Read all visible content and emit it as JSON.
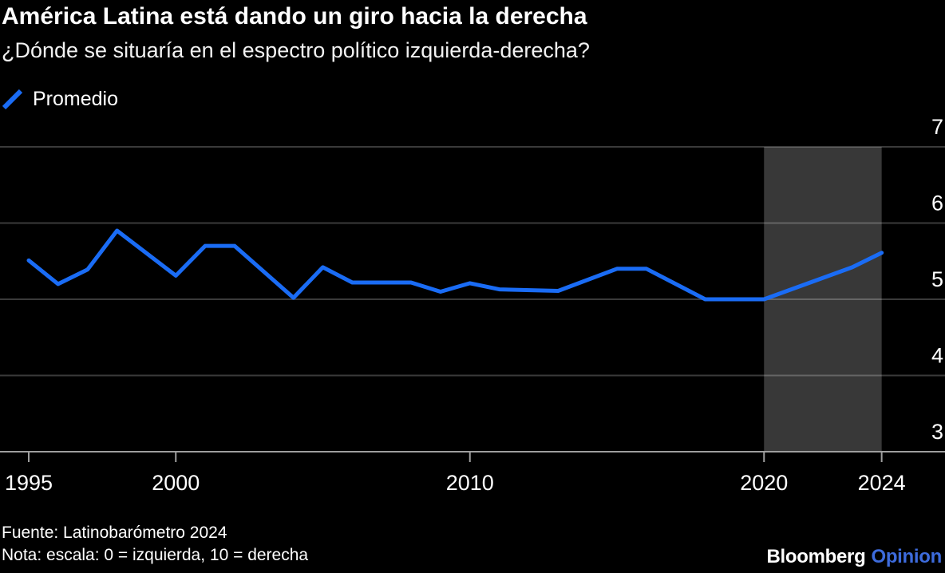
{
  "header": {
    "title": "América Latina está dando un giro hacia la derecha",
    "subtitle": "¿Dónde se situaría en el espectro político izquierda-derecha?"
  },
  "legend": {
    "label": "Promedio",
    "marker_icon": "blue-line-slash-icon",
    "marker_color": "#1a6cf5"
  },
  "footer": {
    "source": "Fuente: Latinobarómetro 2024",
    "note": "Nota: escala: 0 = izquierda, 10 = derecha",
    "logo_primary": "Bloomberg",
    "logo_secondary": "Opinion"
  },
  "colors": {
    "background": "#000000",
    "line": "#1a6cf5",
    "gridline": "#3a3a3a",
    "axis_baseline": "#9e9e9e",
    "axis_text": "#ffffff",
    "highlight_band": "rgba(255,255,255,0.22)",
    "logo_opinion_blue": "#3d6bdc"
  },
  "chart_data": {
    "type": "line",
    "title": "América Latina está dando un giro hacia la derecha",
    "subtitle": "¿Dónde se situaría en el espectro político izquierda-derecha?",
    "xlabel": "",
    "ylabel": "",
    "x_domain": [
      1995,
      2024
    ],
    "y_domain": [
      3,
      7
    ],
    "x_ticks": [
      1995,
      2000,
      2010,
      2020,
      2024
    ],
    "y_ticks": [
      7,
      6,
      5,
      4,
      3
    ],
    "grid": true,
    "legend_position": "top-left",
    "highlight_band": {
      "from": 2020,
      "to": 2024
    },
    "series": [
      {
        "name": "Promedio",
        "color": "#1a6cf5",
        "points": [
          [
            1995,
            5.51
          ],
          [
            1996,
            5.2
          ],
          [
            1997,
            5.39
          ],
          [
            1998,
            5.9
          ],
          [
            2000,
            5.31
          ],
          [
            2001,
            5.7
          ],
          [
            2002,
            5.7
          ],
          [
            2003,
            5.36
          ],
          [
            2004,
            5.02
          ],
          [
            2005,
            5.42
          ],
          [
            2006,
            5.22
          ],
          [
            2007,
            5.22
          ],
          [
            2008,
            5.22
          ],
          [
            2009,
            5.1
          ],
          [
            2010,
            5.21
          ],
          [
            2011,
            5.13
          ],
          [
            2013,
            5.11
          ],
          [
            2015,
            5.4
          ],
          [
            2016,
            5.4
          ],
          [
            2017,
            5.2
          ],
          [
            2018,
            5.0
          ],
          [
            2020,
            5.0
          ],
          [
            2023,
            5.42
          ],
          [
            2024,
            5.61
          ]
        ]
      }
    ]
  }
}
